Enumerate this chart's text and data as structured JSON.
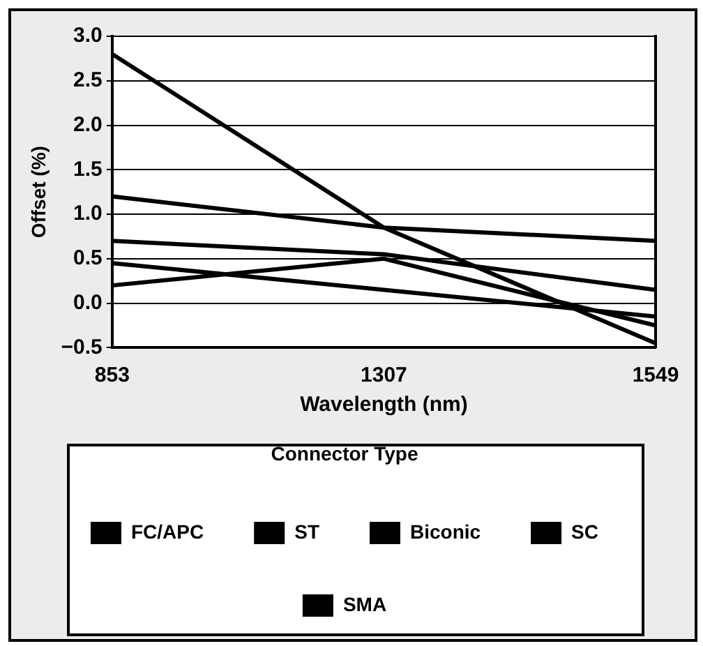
{
  "chart_data": {
    "type": "line",
    "xlabel": "Wavelength (nm)",
    "ylabel": "Offset (%)",
    "legend_title": "Connector Type",
    "categories": [
      "853",
      "1307",
      "1549"
    ],
    "series": [
      {
        "name": "FC/APC",
        "color": "#000000",
        "values": [
          2.8,
          0.85,
          -0.45
        ]
      },
      {
        "name": "ST",
        "color": "#000000",
        "values": [
          1.2,
          0.85,
          0.7
        ]
      },
      {
        "name": "Biconic",
        "color": "#000000",
        "values": [
          0.7,
          0.55,
          0.15
        ]
      },
      {
        "name": "SC",
        "color": "#000000",
        "values": [
          0.45,
          0.15,
          -0.15
        ]
      },
      {
        "name": "SMA",
        "color": "#000000",
        "values": [
          0.2,
          0.5,
          -0.25
        ]
      }
    ],
    "ylim": [
      -0.5,
      3.0
    ],
    "yticks": [
      {
        "value": -0.5,
        "label": "−0.5"
      },
      {
        "value": 0,
        "label": "0.0"
      },
      {
        "value": 0.5,
        "label": "0.5"
      },
      {
        "value": 1,
        "label": "1.0"
      },
      {
        "value": 1.5,
        "label": "1.5"
      },
      {
        "value": 2,
        "label": "2.0"
      },
      {
        "value": 2.5,
        "label": "2.5"
      },
      {
        "value": 3,
        "label": "3.0"
      }
    ],
    "grid": "y",
    "legend": "bottom",
    "marker": "none",
    "line_style": "solid"
  }
}
